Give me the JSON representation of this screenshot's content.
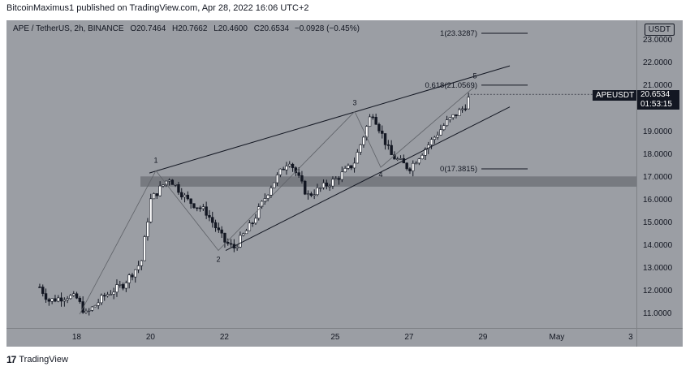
{
  "header": {
    "published": "BitcoinMaximus1 published on TradingView.com, Apr 28, 2022 16:06 UTC+2"
  },
  "legend": {
    "symbol": "APE / TetherUS, 2h, BINANCE",
    "o_label": "O",
    "o": "20.7464",
    "h_label": "H",
    "h": "20.7662",
    "l_label": "L",
    "l": "20.4600",
    "c_label": "C",
    "c": "20.6534",
    "change": "−0.0928 (−0.45%)"
  },
  "price_scale": {
    "currency": "USDT",
    "last_price": "20.6534",
    "countdown": "01:53:15",
    "symbol_tag": "APEUSDT"
  },
  "footer": {
    "brand": "TradingView"
  },
  "colors": {
    "background": "#9b9ea4",
    "candle_up": "#ffffff",
    "candle_down": "#131722",
    "line": "#131722",
    "zone": "#5a5d63"
  },
  "chart_data": {
    "type": "candlestick",
    "symbol": "APE / TetherUS",
    "interval": "2h",
    "exchange": "BINANCE",
    "y_ticks": [
      "23.0000",
      "22.0000",
      "21.0000",
      "19.0000",
      "18.0000",
      "17.0000",
      "16.0000",
      "15.0000",
      "14.0000",
      "13.0000",
      "12.0000",
      "11.0000"
    ],
    "x_ticks": [
      "18",
      "20",
      "22",
      "25",
      "27",
      "29",
      "May",
      "3"
    ],
    "ylim": [
      10.4,
      23.9
    ],
    "last_price": 20.6534,
    "fibonacci": [
      {
        "label": "1(23.3287)",
        "level": 1,
        "price": 23.3287
      },
      {
        "label": "0.618(21.0569)",
        "level": 0.618,
        "price": 21.0569
      },
      {
        "label": "0(17.3815)",
        "level": 0,
        "price": 17.3815
      }
    ],
    "support_zone": [
      16.6,
      17.05
    ],
    "wave_labels": [
      {
        "label": "1",
        "date": "Apr 20",
        "price": 17.6
      },
      {
        "label": "2",
        "date": "Apr 22",
        "price": 13.6
      },
      {
        "label": "3",
        "date": "Apr 26",
        "price": 20.4
      },
      {
        "label": "4",
        "date": "Apr 27",
        "price": 16.8
      },
      {
        "label": "5",
        "date": "Apr 29",
        "price": 21.7
      }
    ],
    "price_path": [
      {
        "date": "Apr 17 00:00",
        "price": 12.2
      },
      {
        "date": "Apr 17 06:00",
        "price": 11.6
      },
      {
        "date": "Apr 17 18:00",
        "price": 11.8
      },
      {
        "date": "Apr 18 00:00",
        "price": 11.7
      },
      {
        "date": "Apr 18 06:00",
        "price": 11.0
      },
      {
        "date": "Apr 18 18:00",
        "price": 11.8
      },
      {
        "date": "Apr 19 06:00",
        "price": 12.3
      },
      {
        "date": "Apr 19 18:00",
        "price": 13.3
      },
      {
        "date": "Apr 20 00:00",
        "price": 16.0
      },
      {
        "date": "Apr 20 12:00",
        "price": 17.0
      },
      {
        "date": "Apr 21 00:00",
        "price": 16.0
      },
      {
        "date": "Apr 21 12:00",
        "price": 15.5
      },
      {
        "date": "Apr 22 00:00",
        "price": 14.2
      },
      {
        "date": "Apr 22 06:00",
        "price": 13.9
      },
      {
        "date": "Apr 22 18:00",
        "price": 15.0
      },
      {
        "date": "Apr 23 06:00",
        "price": 16.6
      },
      {
        "date": "Apr 23 18:00",
        "price": 17.8
      },
      {
        "date": "Apr 24 06:00",
        "price": 16.2
      },
      {
        "date": "Apr 25 00:00",
        "price": 16.9
      },
      {
        "date": "Apr 25 12:00",
        "price": 17.6
      },
      {
        "date": "Apr 26 00:00",
        "price": 19.9
      },
      {
        "date": "Apr 26 12:00",
        "price": 18.0
      },
      {
        "date": "Apr 27 00:00",
        "price": 17.4
      },
      {
        "date": "Apr 27 12:00",
        "price": 18.4
      },
      {
        "date": "Apr 28 00:00",
        "price": 19.4
      },
      {
        "date": "Apr 28 12:00",
        "price": 20.1
      },
      {
        "date": "Apr 28 16:00",
        "price": 20.65
      }
    ]
  }
}
